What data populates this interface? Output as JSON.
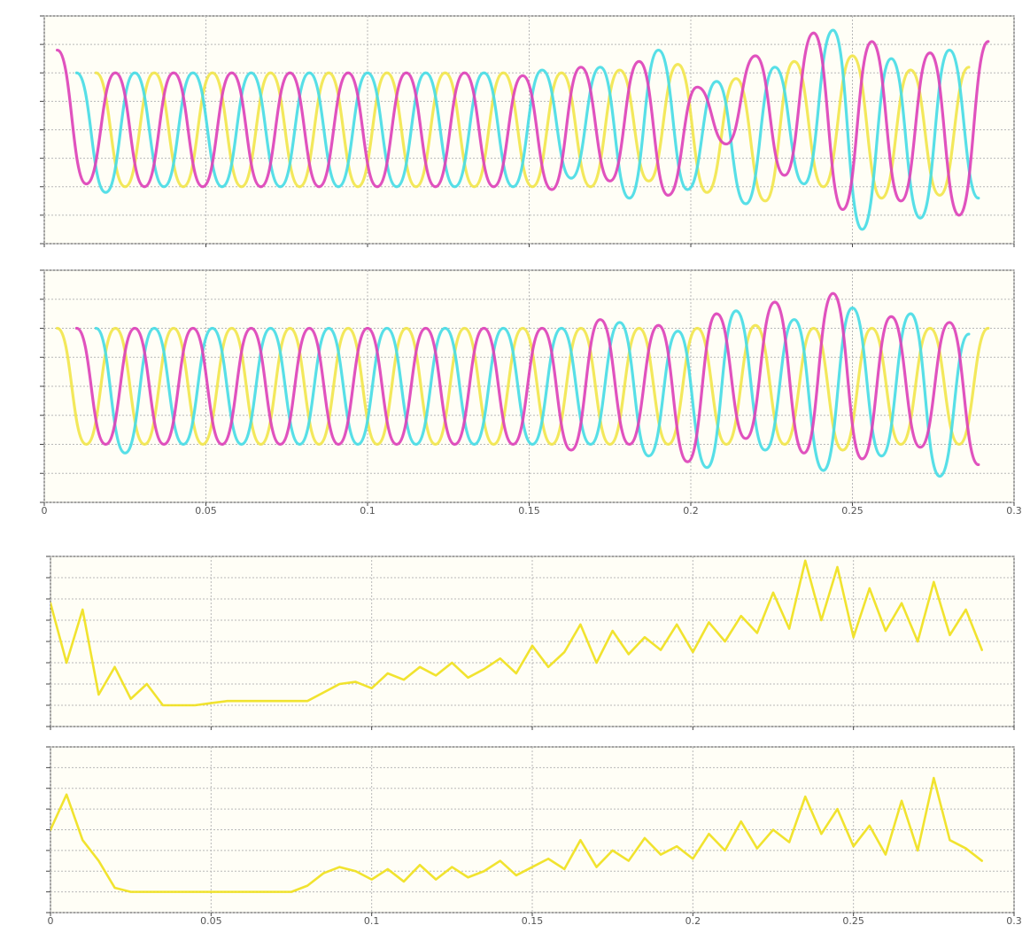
{
  "chart_data": [
    {
      "type": "line",
      "smooth": true,
      "show_xtick_labels": false,
      "grid": true,
      "xlim": [
        0,
        0.3
      ],
      "xticks": [
        0,
        0.05,
        0.1,
        0.15,
        0.2,
        0.25,
        0.3
      ],
      "ylim": [
        -4,
        4
      ],
      "yticks": [
        -4,
        -3,
        -2,
        -1,
        0,
        1,
        2,
        3,
        4
      ],
      "series": [
        {
          "color": "#f2e64a",
          "x": [
            0.016,
            0.025,
            0.034,
            0.043,
            0.052,
            0.061,
            0.07,
            0.079,
            0.088,
            0.097,
            0.106,
            0.115,
            0.124,
            0.133,
            0.142,
            0.151,
            0.16,
            0.169,
            0.178,
            0.187,
            0.196,
            0.205,
            0.214,
            0.223,
            0.232,
            0.241,
            0.25,
            0.259,
            0.268,
            0.277,
            0.286
          ],
          "values": [
            2,
            -2,
            2,
            -2,
            2,
            -2,
            2,
            -2,
            2,
            -2,
            2,
            -2,
            2,
            -2,
            2,
            -2,
            2,
            -2,
            2.1,
            -1.8,
            2.3,
            -2.2,
            1.8,
            -2.5,
            2.4,
            -2,
            2.6,
            -2.4,
            2.1,
            -2.3,
            2.2
          ]
        },
        {
          "color": "#45dbe6",
          "x": [
            0.01,
            0.019,
            0.028,
            0.037,
            0.046,
            0.055,
            0.064,
            0.073,
            0.082,
            0.091,
            0.1,
            0.109,
            0.118,
            0.127,
            0.136,
            0.145,
            0.154,
            0.163,
            0.172,
            0.181,
            0.19,
            0.199,
            0.208,
            0.217,
            0.226,
            0.235,
            0.244,
            0.253,
            0.262,
            0.271,
            0.28,
            0.289
          ],
          "values": [
            2,
            -2.2,
            2,
            -2,
            2,
            -2,
            2,
            -2,
            2,
            -2,
            2,
            -2,
            2,
            -2,
            2,
            -2,
            2.1,
            -1.7,
            2.2,
            -2.4,
            2.8,
            -2.1,
            1.7,
            -2.6,
            2.2,
            -1.9,
            3.5,
            -3.5,
            2.5,
            -3.1,
            2.8,
            -2.4
          ]
        },
        {
          "color": "#dd3fb8",
          "x": [
            0.004,
            0.013,
            0.022,
            0.031,
            0.04,
            0.049,
            0.058,
            0.067,
            0.076,
            0.085,
            0.094,
            0.103,
            0.112,
            0.121,
            0.13,
            0.139,
            0.148,
            0.157,
            0.166,
            0.175,
            0.184,
            0.193,
            0.202,
            0.211,
            0.22,
            0.229,
            0.238,
            0.247,
            0.256,
            0.265,
            0.274,
            0.283,
            0.292
          ],
          "values": [
            2.8,
            -1.9,
            2,
            -2,
            2,
            -2,
            2,
            -2,
            2,
            -2,
            2,
            -2,
            2,
            -2,
            2,
            -2,
            1.9,
            -2.1,
            2.2,
            -1.8,
            2.4,
            -2.3,
            1.5,
            -0.5,
            2.6,
            -1.6,
            3.4,
            -2.8,
            3.1,
            -2.5,
            2.7,
            -3,
            3.1
          ]
        }
      ]
    },
    {
      "type": "line",
      "smooth": true,
      "show_xtick_labels": true,
      "grid": true,
      "xlim": [
        0,
        0.3
      ],
      "xticks": [
        0,
        0.05,
        0.1,
        0.15,
        0.2,
        0.25,
        0.3
      ],
      "ylim": [
        -4,
        4
      ],
      "yticks": [
        -4,
        -3,
        -2,
        -1,
        0,
        1,
        2,
        3,
        4
      ],
      "series": [
        {
          "color": "#f2e64a",
          "x": [
            0.004,
            0.013,
            0.022,
            0.031,
            0.04,
            0.049,
            0.058,
            0.067,
            0.076,
            0.085,
            0.094,
            0.103,
            0.112,
            0.121,
            0.13,
            0.139,
            0.148,
            0.157,
            0.166,
            0.175,
            0.184,
            0.193,
            0.202,
            0.211,
            0.22,
            0.229,
            0.238,
            0.247,
            0.256,
            0.265,
            0.274,
            0.283,
            0.292
          ],
          "values": [
            2,
            -2,
            2,
            -2,
            2,
            -2,
            2,
            -2,
            2,
            -2,
            2,
            -2,
            2,
            -2,
            2,
            -2,
            2,
            -2,
            2,
            -2,
            2,
            -2,
            2,
            -2,
            2.1,
            -2,
            2,
            -2.2,
            2,
            -2,
            2,
            -2,
            2
          ]
        },
        {
          "color": "#45dbe6",
          "x": [
            0.016,
            0.025,
            0.034,
            0.043,
            0.052,
            0.061,
            0.07,
            0.079,
            0.088,
            0.097,
            0.106,
            0.115,
            0.124,
            0.133,
            0.142,
            0.151,
            0.16,
            0.169,
            0.178,
            0.187,
            0.196,
            0.205,
            0.214,
            0.223,
            0.232,
            0.241,
            0.25,
            0.259,
            0.268,
            0.277,
            0.286
          ],
          "values": [
            2,
            -2.3,
            2,
            -2,
            2,
            -2,
            2,
            -2,
            2,
            -2,
            2,
            -2,
            2,
            -2,
            2,
            -2,
            2,
            -2,
            2.2,
            -2.4,
            1.9,
            -2.8,
            2.6,
            -2.2,
            2.3,
            -2.9,
            2.7,
            -2.4,
            2.5,
            -3.1,
            1.8
          ]
        },
        {
          "color": "#dd3fb8",
          "x": [
            0.01,
            0.019,
            0.028,
            0.037,
            0.046,
            0.055,
            0.064,
            0.073,
            0.082,
            0.091,
            0.1,
            0.109,
            0.118,
            0.127,
            0.136,
            0.145,
            0.154,
            0.163,
            0.172,
            0.181,
            0.19,
            0.199,
            0.208,
            0.217,
            0.226,
            0.235,
            0.244,
            0.253,
            0.262,
            0.271,
            0.28,
            0.289
          ],
          "values": [
            2,
            -2,
            2,
            -2,
            2,
            -2,
            2,
            -2,
            2,
            -2,
            2,
            -2,
            2,
            -2,
            2,
            -2,
            2,
            -2.2,
            2.3,
            -2,
            2.1,
            -2.6,
            2.5,
            -1.8,
            2.9,
            -2.3,
            3.2,
            -2.5,
            2.4,
            -2.1,
            2.2,
            -2.7
          ]
        }
      ]
    },
    {
      "type": "line",
      "smooth": false,
      "show_xtick_labels": false,
      "grid": true,
      "xlim": [
        0,
        0.3
      ],
      "xticks": [
        0,
        0.05,
        0.1,
        0.15,
        0.2,
        0.25,
        0.3
      ],
      "ylim": [
        -1,
        7
      ],
      "yticks": [
        -1,
        0,
        1,
        2,
        3,
        4,
        5,
        6,
        7
      ],
      "x": [
        0,
        0.005,
        0.01,
        0.015,
        0.02,
        0.025,
        0.03,
        0.035,
        0.04,
        0.045,
        0.05,
        0.055,
        0.06,
        0.065,
        0.07,
        0.075,
        0.08,
        0.085,
        0.09,
        0.095,
        0.1,
        0.105,
        0.11,
        0.115,
        0.12,
        0.125,
        0.13,
        0.135,
        0.14,
        0.145,
        0.15,
        0.155,
        0.16,
        0.165,
        0.17,
        0.175,
        0.18,
        0.185,
        0.19,
        0.195,
        0.2,
        0.205,
        0.21,
        0.215,
        0.22,
        0.225,
        0.23,
        0.235,
        0.24,
        0.245,
        0.25,
        0.255,
        0.26,
        0.265,
        0.27,
        0.275,
        0.28,
        0.285,
        0.29
      ],
      "series": [
        {
          "color": "#f0e01a",
          "values": [
            4.8,
            2,
            4.5,
            0.5,
            1.8,
            0.3,
            1,
            0,
            0,
            0,
            0.1,
            0.2,
            0.2,
            0.2,
            0.2,
            0.2,
            0.2,
            0.6,
            1,
            1.1,
            0.8,
            1.5,
            1.2,
            1.8,
            1.4,
            2,
            1.3,
            1.7,
            2.2,
            1.5,
            2.8,
            1.8,
            2.5,
            3.8,
            2,
            3.5,
            2.4,
            3.2,
            2.6,
            3.8,
            2.5,
            3.9,
            3,
            4.2,
            3.4,
            5.3,
            3.6,
            6.8,
            4,
            6.5,
            3.2,
            5.5,
            3.5,
            4.8,
            3,
            5.8,
            3.3,
            4.5,
            2.6
          ]
        }
      ]
    },
    {
      "type": "line",
      "smooth": false,
      "show_xtick_labels": true,
      "grid": true,
      "xlim": [
        0,
        0.3
      ],
      "xticks": [
        0,
        0.05,
        0.1,
        0.15,
        0.2,
        0.25,
        0.3
      ],
      "ylim": [
        -1,
        7
      ],
      "yticks": [
        -1,
        0,
        1,
        2,
        3,
        4,
        5,
        6,
        7
      ],
      "x": [
        0,
        0.005,
        0.01,
        0.015,
        0.02,
        0.025,
        0.03,
        0.035,
        0.04,
        0.045,
        0.05,
        0.055,
        0.06,
        0.065,
        0.07,
        0.075,
        0.08,
        0.085,
        0.09,
        0.095,
        0.1,
        0.105,
        0.11,
        0.115,
        0.12,
        0.125,
        0.13,
        0.135,
        0.14,
        0.145,
        0.15,
        0.155,
        0.16,
        0.165,
        0.17,
        0.175,
        0.18,
        0.185,
        0.19,
        0.195,
        0.2,
        0.205,
        0.21,
        0.215,
        0.22,
        0.225,
        0.23,
        0.235,
        0.24,
        0.245,
        0.25,
        0.255,
        0.26,
        0.265,
        0.27,
        0.275,
        0.28,
        0.285,
        0.29
      ],
      "series": [
        {
          "color": "#f0e01a",
          "values": [
            3,
            4.7,
            2.5,
            1.5,
            0.2,
            0,
            0,
            0,
            0,
            0,
            0,
            0,
            0,
            0,
            0,
            0,
            0.3,
            0.9,
            1.2,
            1,
            0.6,
            1.1,
            0.5,
            1.3,
            0.6,
            1.2,
            0.7,
            1,
            1.5,
            0.8,
            1.2,
            1.6,
            1.1,
            2.5,
            1.2,
            2,
            1.5,
            2.6,
            1.8,
            2.2,
            1.6,
            2.8,
            2,
            3.4,
            2.1,
            3,
            2.4,
            4.6,
            2.8,
            4,
            2.2,
            3.2,
            1.8,
            4.4,
            2,
            5.5,
            2.5,
            2.1,
            1.5
          ]
        }
      ]
    }
  ]
}
